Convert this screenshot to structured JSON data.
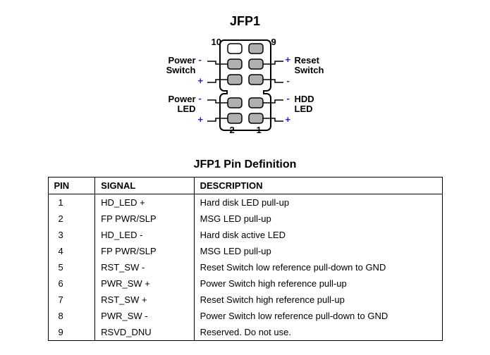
{
  "header_title": "JFP1",
  "table_title": "JFP1 Pin Definition",
  "columns": [
    "PIN",
    "SIGNAL",
    "DESCRIPTION"
  ],
  "rows": [
    [
      "1",
      "HD_LED +",
      "Hard disk LED pull-up"
    ],
    [
      "2",
      "FP PWR/SLP",
      "MSG LED pull-up"
    ],
    [
      "3",
      "HD_LED -",
      "Hard disk active LED"
    ],
    [
      "4",
      "FP PWR/SLP",
      "MSG LED pull-up"
    ],
    [
      "5",
      "RST_SW -",
      "Reset Switch low reference pull-down to GND"
    ],
    [
      "6",
      "PWR_SW +",
      "Power Switch high reference pull-up"
    ],
    [
      "7",
      "RST_SW +",
      "Reset Switch high reference pull-up"
    ],
    [
      "8",
      "PWR_SW -",
      "Power Switch low reference pull-down to GND"
    ],
    [
      "9",
      "RSVD_DNU",
      "Reserved. Do not use."
    ]
  ],
  "diagram": {
    "pin_count": 10,
    "missing_pin": 10,
    "pin_num_top_left": "10",
    "pin_num_top_right": "9",
    "pin_num_bottom_left": "2",
    "pin_num_bottom_right": "1",
    "labels": {
      "left_top": {
        "line1": "Power",
        "line2": "Switch"
      },
      "left_bottom": {
        "line1": "Power",
        "line2": "LED"
      },
      "right_top": {
        "line1": "Reset",
        "line2": "Switch"
      },
      "right_bottom": {
        "line1": "HDD",
        "line2": "LED"
      }
    },
    "signs": {
      "left_top": [
        "-",
        "+"
      ],
      "left_bottom": [
        "-",
        "+"
      ],
      "right_top": [
        "+",
        "-"
      ],
      "right_bottom": [
        "-",
        "+"
      ]
    },
    "colors": {
      "stroke": "#000000",
      "fill_pin": "#b0b0b0",
      "fill_empty": "#ffffff",
      "sign_color": "#2020d0"
    }
  }
}
